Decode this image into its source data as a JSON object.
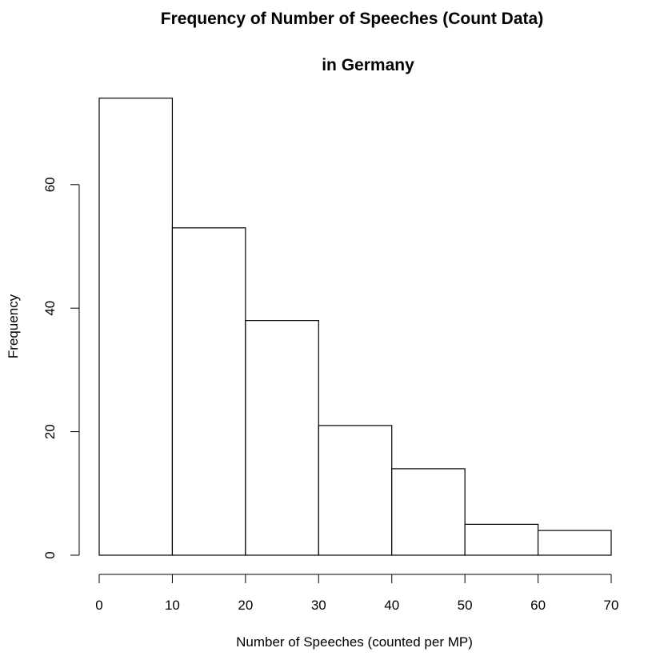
{
  "chart_data": {
    "type": "bar",
    "title": "Frequency of Number of Speeches (Count Data)",
    "subtitle": "in Germany",
    "xlabel": "Number of Speeches (counted per MP)",
    "ylabel": "Frequency",
    "bins": [
      {
        "x0": 0,
        "x1": 10,
        "value": 74
      },
      {
        "x0": 10,
        "x1": 20,
        "value": 53
      },
      {
        "x0": 20,
        "x1": 30,
        "value": 38
      },
      {
        "x0": 30,
        "x1": 40,
        "value": 21
      },
      {
        "x0": 40,
        "x1": 50,
        "value": 14
      },
      {
        "x0": 50,
        "x1": 60,
        "value": 5
      },
      {
        "x0": 60,
        "x1": 70,
        "value": 4
      }
    ],
    "xlim": [
      0,
      70
    ],
    "ylim": [
      0,
      76
    ],
    "xticks": [
      0,
      10,
      20,
      30,
      40,
      50,
      60,
      70
    ],
    "yticks": [
      0,
      20,
      40,
      60
    ],
    "grid": false,
    "legend": "none"
  }
}
